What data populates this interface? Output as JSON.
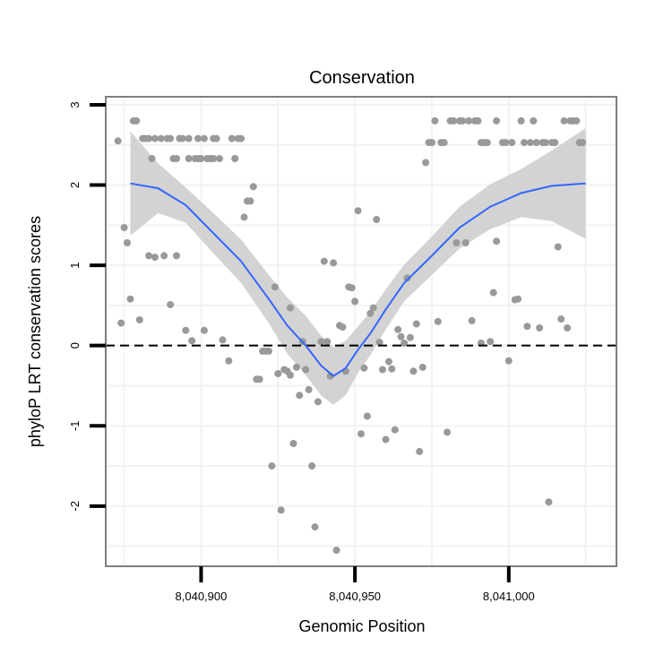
{
  "chart_data": {
    "type": "scatter",
    "title": "Conservation",
    "xlabel": "Genomic Position",
    "ylabel": "phyloP LRT conservation scores",
    "xlim": [
      8040869,
      8041035
    ],
    "ylim": [
      -2.75,
      3.1
    ],
    "grid": true,
    "x_ticks": [
      8040900,
      8040950,
      8041000
    ],
    "x_tick_labels": [
      "8,040,900",
      "8,040,950",
      "8,041,000"
    ],
    "y_ticks": [
      -2,
      -1,
      0,
      1,
      2,
      3
    ],
    "y_tick_labels": [
      "-2",
      "-1",
      "0",
      "1",
      "2",
      "3"
    ],
    "reference_line": {
      "y": 0,
      "style": "dashed",
      "color": "#000000"
    },
    "colors": {
      "points": "#999999",
      "smooth_line": "#3366ff",
      "ribbon": "#d3d3d3",
      "panel_border": "#7f7f7f",
      "grid": "#f2f2f2"
    },
    "series": [
      {
        "type": "scatter",
        "points": [
          [
            8040873,
            2.55
          ],
          [
            8040874,
            0.28
          ],
          [
            8040875,
            1.47
          ],
          [
            8040876,
            1.28
          ],
          [
            8040877,
            0.58
          ],
          [
            8040878,
            2.8
          ],
          [
            8040879,
            2.8
          ],
          [
            8040880,
            0.32
          ],
          [
            8040881,
            2.58
          ],
          [
            8040882,
            2.58
          ],
          [
            8040883,
            1.12
          ],
          [
            8040883,
            2.58
          ],
          [
            8040884,
            2.33
          ],
          [
            8040885,
            2.58
          ],
          [
            8040885,
            1.1
          ],
          [
            8040887,
            2.58
          ],
          [
            8040888,
            1.12
          ],
          [
            8040889,
            2.58
          ],
          [
            8040890,
            2.58
          ],
          [
            8040890,
            0.51
          ],
          [
            8040891,
            2.33
          ],
          [
            8040892,
            2.33
          ],
          [
            8040892,
            1.12
          ],
          [
            8040893,
            2.58
          ],
          [
            8040894,
            2.58
          ],
          [
            8040895,
            0.19
          ],
          [
            8040896,
            2.33
          ],
          [
            8040896,
            2.58
          ],
          [
            8040897,
            0.06
          ],
          [
            8040898,
            2.33
          ],
          [
            8040899,
            2.58
          ],
          [
            8040899,
            2.33
          ],
          [
            8040900,
            2.33
          ],
          [
            8040901,
            2.58
          ],
          [
            8040901,
            0.19
          ],
          [
            8040902,
            2.33
          ],
          [
            8040903,
            2.33
          ],
          [
            8040904,
            2.58
          ],
          [
            8040904,
            2.33
          ],
          [
            8040905,
            2.58
          ],
          [
            8040906,
            2.33
          ],
          [
            8040907,
            0.07
          ],
          [
            8040909,
            -0.19
          ],
          [
            8040910,
            2.58
          ],
          [
            8040911,
            2.33
          ],
          [
            8040912,
            2.58
          ],
          [
            8040913,
            2.58
          ],
          [
            8040914,
            1.6
          ],
          [
            8040915,
            1.8
          ],
          [
            8040916,
            1.8
          ],
          [
            8040917,
            1.98
          ],
          [
            8040918,
            -0.42
          ],
          [
            8040919,
            -0.42
          ],
          [
            8040920,
            -0.07
          ],
          [
            8040921,
            -0.07
          ],
          [
            8040922,
            -0.07
          ],
          [
            8040923,
            -1.5
          ],
          [
            8040924,
            0.73
          ],
          [
            8040925,
            -0.35
          ],
          [
            8040926,
            -2.05
          ],
          [
            8040927,
            -0.3
          ],
          [
            8040928,
            -0.32
          ],
          [
            8040929,
            0.47
          ],
          [
            8040929,
            -0.37
          ],
          [
            8040930,
            -1.22
          ],
          [
            8040931,
            -0.27
          ],
          [
            8040932,
            -0.62
          ],
          [
            8040933,
            0.05
          ],
          [
            8040934,
            -0.3
          ],
          [
            8040935,
            -0.55
          ],
          [
            8040936,
            -1.5
          ],
          [
            8040937,
            -2.26
          ],
          [
            8040938,
            -0.7
          ],
          [
            8040939,
            0.05
          ],
          [
            8040940,
            1.05
          ],
          [
            8040941,
            0.05
          ],
          [
            8040942,
            -0.38
          ],
          [
            8040943,
            1.03
          ],
          [
            8040944,
            -2.55
          ],
          [
            8040945,
            0.25
          ],
          [
            8040946,
            0.23
          ],
          [
            8040947,
            -0.32
          ],
          [
            8040948,
            0.73
          ],
          [
            8040949,
            0.72
          ],
          [
            8040950,
            0.55
          ],
          [
            8040951,
            1.68
          ],
          [
            8040952,
            -1.1
          ],
          [
            8040953,
            -0.28
          ],
          [
            8040954,
            -0.88
          ],
          [
            8040955,
            0.4
          ],
          [
            8040956,
            0.47
          ],
          [
            8040957,
            1.57
          ],
          [
            8040958,
            0.04
          ],
          [
            8040959,
            -0.3
          ],
          [
            8040960,
            -1.17
          ],
          [
            8040961,
            -0.2
          ],
          [
            8040962,
            -0.29
          ],
          [
            8040963,
            -1.05
          ],
          [
            8040964,
            0.2
          ],
          [
            8040965,
            0.11
          ],
          [
            8040966,
            0.03
          ],
          [
            8040967,
            0.84
          ],
          [
            8040968,
            0.1
          ],
          [
            8040969,
            -0.32
          ],
          [
            8040970,
            0.27
          ],
          [
            8040971,
            -1.32
          ],
          [
            8040972,
            -0.27
          ],
          [
            8040973,
            2.28
          ],
          [
            8040974,
            2.53
          ],
          [
            8040975,
            2.53
          ],
          [
            8040976,
            2.8
          ],
          [
            8040977,
            0.3
          ],
          [
            8040978,
            2.53
          ],
          [
            8040979,
            2.53
          ],
          [
            8040980,
            -1.08
          ],
          [
            8040981,
            2.8
          ],
          [
            8040982,
            2.8
          ],
          [
            8040983,
            1.28
          ],
          [
            8040984,
            2.8
          ],
          [
            8040985,
            2.8
          ],
          [
            8040986,
            1.28
          ],
          [
            8040987,
            2.8
          ],
          [
            8040988,
            0.31
          ],
          [
            8040989,
            2.8
          ],
          [
            8040990,
            2.8
          ],
          [
            8040991,
            2.53
          ],
          [
            8040991,
            0.03
          ],
          [
            8040992,
            2.53
          ],
          [
            8040993,
            2.53
          ],
          [
            8040994,
            0.05
          ],
          [
            8040995,
            0.66
          ],
          [
            8040996,
            2.8
          ],
          [
            8040996,
            1.3
          ],
          [
            8040998,
            2.53
          ],
          [
            8040999,
            2.53
          ],
          [
            8041000,
            -0.19
          ],
          [
            8041001,
            2.53
          ],
          [
            8041002,
            0.57
          ],
          [
            8041003,
            0.58
          ],
          [
            8041004,
            2.8
          ],
          [
            8041005,
            2.53
          ],
          [
            8041006,
            0.24
          ],
          [
            8041007,
            2.53
          ],
          [
            8041008,
            2.8
          ],
          [
            8041009,
            2.53
          ],
          [
            8041010,
            0.22
          ],
          [
            8041011,
            2.53
          ],
          [
            8041012,
            2.53
          ],
          [
            8041013,
            -1.95
          ],
          [
            8041014,
            2.53
          ],
          [
            8041015,
            2.53
          ],
          [
            8041016,
            1.23
          ],
          [
            8041017,
            0.33
          ],
          [
            8041018,
            2.8
          ],
          [
            8041019,
            0.22
          ],
          [
            8041020,
            2.8
          ],
          [
            8041021,
            2.8
          ],
          [
            8041022,
            2.8
          ],
          [
            8041023,
            2.53
          ],
          [
            8041024,
            2.53
          ]
        ]
      },
      {
        "type": "line",
        "x": [
          8040877,
          8040886,
          8040895,
          8040904,
          8040913,
          8040922,
          8040928,
          8040934,
          8040939,
          8040943,
          8040947,
          8040951,
          8040955,
          8040960,
          8040966,
          8040975,
          8040984,
          8040994,
          8041004,
          8041014,
          8041025
        ],
        "y": [
          2.02,
          1.96,
          1.75,
          1.4,
          1.05,
          0.58,
          0.25,
          0.0,
          -0.25,
          -0.38,
          -0.28,
          -0.05,
          0.15,
          0.45,
          0.78,
          1.12,
          1.47,
          1.73,
          1.9,
          1.99,
          2.02
        ],
        "ci_low": [
          1.37,
          1.65,
          1.53,
          1.15,
          0.78,
          0.28,
          -0.1,
          -0.37,
          -0.62,
          -0.74,
          -0.62,
          -0.34,
          -0.12,
          0.2,
          0.55,
          0.88,
          1.21,
          1.45,
          1.6,
          1.55,
          1.33
        ],
        "ci_high": [
          2.67,
          2.27,
          1.97,
          1.65,
          1.32,
          0.88,
          0.6,
          0.37,
          0.12,
          -0.02,
          0.06,
          0.24,
          0.42,
          0.7,
          1.01,
          1.36,
          1.73,
          2.01,
          2.2,
          2.43,
          2.71
        ]
      }
    ]
  }
}
